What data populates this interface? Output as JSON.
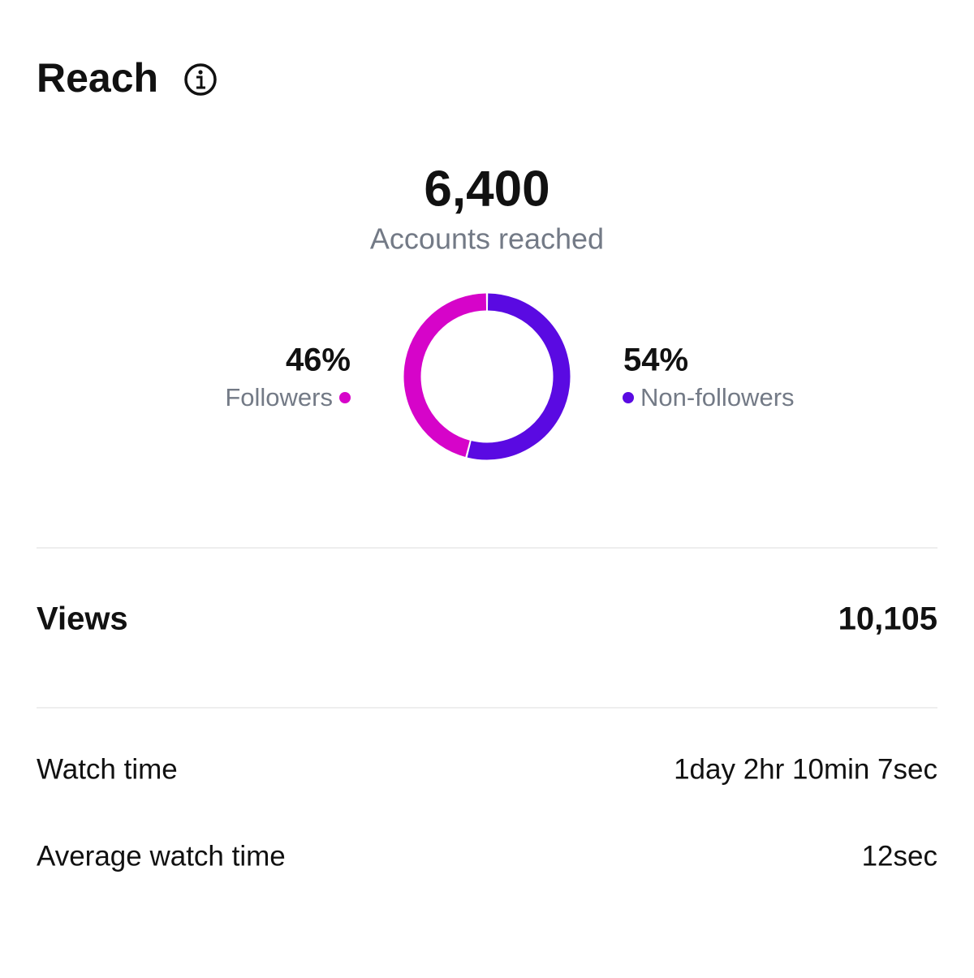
{
  "header": {
    "title": "Reach"
  },
  "summary": {
    "total": "6,400",
    "label": "Accounts reached"
  },
  "chart_data": {
    "type": "pie",
    "categories": [
      "Followers",
      "Non-followers"
    ],
    "values": [
      46,
      54
    ],
    "value_labels": [
      "46%",
      "54%"
    ],
    "colors": [
      "#d604c9",
      "#5a0ae2"
    ]
  },
  "views": {
    "label": "Views",
    "value": "10,105"
  },
  "metrics": [
    {
      "label": "Watch time",
      "value": "1day 2hr 10min 7sec"
    },
    {
      "label": "Average watch time",
      "value": "12sec"
    }
  ]
}
